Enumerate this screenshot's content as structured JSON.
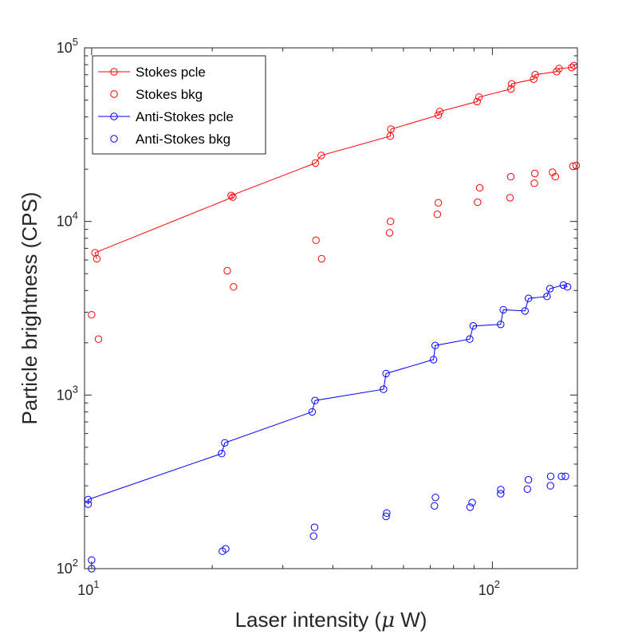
{
  "chart_data": {
    "type": "scatter",
    "xlabel": "Laser intensity (",
    "xlabel_mu": "μ",
    "xlabel_unit": " W)",
    "ylabel": "Particle brightness (CPS)",
    "x_scale": "log",
    "y_scale": "log",
    "xlim": [
      9.6,
      163
    ],
    "ylim": [
      100,
      100000
    ],
    "grid": false,
    "legend_position": "top-left",
    "x_ticks": [
      {
        "value": 10,
        "base": "10",
        "exp": "1"
      },
      {
        "value": 100,
        "base": "10",
        "exp": "2"
      }
    ],
    "y_ticks": [
      {
        "value": 100,
        "base": "10",
        "exp": "2"
      },
      {
        "value": 1000,
        "base": "10",
        "exp": "3"
      },
      {
        "value": 10000,
        "base": "10",
        "exp": "4"
      },
      {
        "value": 100000,
        "base": "10",
        "exp": "5"
      }
    ],
    "series": [
      {
        "name": "Stokes pcle",
        "color": "#ff0000",
        "style": "line-marker",
        "x": [
          10.3,
          10.2,
          22.5,
          22.3,
          36.2,
          37.4,
          55.6,
          55.8,
          73.3,
          73.9,
          91.6,
          92.6,
          111.3,
          111.8,
          126.8,
          127.9,
          144.7,
          146.7,
          157.7,
          159.8
        ],
        "y": [
          6100,
          6600,
          13800,
          14100,
          21700,
          24000,
          31000,
          34000,
          41000,
          43000,
          49000,
          52000,
          58000,
          62000,
          66000,
          70000,
          73000,
          76000,
          77000,
          79000
        ]
      },
      {
        "name": "Stokes bkg",
        "color": "#ff0000",
        "style": "marker",
        "x": [
          10.0,
          10.4,
          21.8,
          22.6,
          36.3,
          37.5,
          55.4,
          55.7,
          72.9,
          73.3,
          91.9,
          93.0,
          110.7,
          111.2,
          127.3,
          127.7,
          141.3,
          143.6,
          158.9,
          161.9
        ],
        "y": [
          2900,
          2100,
          5200,
          4200,
          7800,
          6100,
          8600,
          10000,
          11000,
          12800,
          12900,
          15600,
          13700,
          18100,
          16600,
          18900,
          19200,
          18100,
          20800,
          21000
        ]
      },
      {
        "name": "Anti-Stokes pcle",
        "color": "#0000ff",
        "style": "line-marker",
        "x": [
          9.8,
          9.8,
          21.1,
          21.5,
          35.5,
          36.1,
          53.5,
          54.3,
          71.3,
          72.0,
          87.8,
          89.6,
          104.9,
          106.5,
          120.6,
          123.1,
          136.9,
          139.2,
          150.4,
          154.0
        ],
        "y": [
          235,
          250,
          460,
          530,
          800,
          930,
          1080,
          1330,
          1600,
          1930,
          2100,
          2500,
          2550,
          3100,
          3050,
          3600,
          3700,
          4100,
          4300,
          4200
        ]
      },
      {
        "name": "Anti-Stokes bkg",
        "color": "#0000ff",
        "style": "marker",
        "x": [
          10.0,
          10.0,
          21.2,
          21.6,
          35.8,
          36.0,
          54.3,
          54.5,
          71.7,
          72.1,
          88.0,
          89.0,
          104.9,
          105.0,
          122.3,
          123.0,
          139.6,
          139.8,
          148.8,
          152.2
        ],
        "y": [
          100,
          112,
          126,
          130,
          154,
          173,
          200,
          209,
          230,
          257,
          226,
          240,
          270,
          285,
          287,
          325,
          300,
          340,
          340,
          340
        ]
      }
    ]
  }
}
